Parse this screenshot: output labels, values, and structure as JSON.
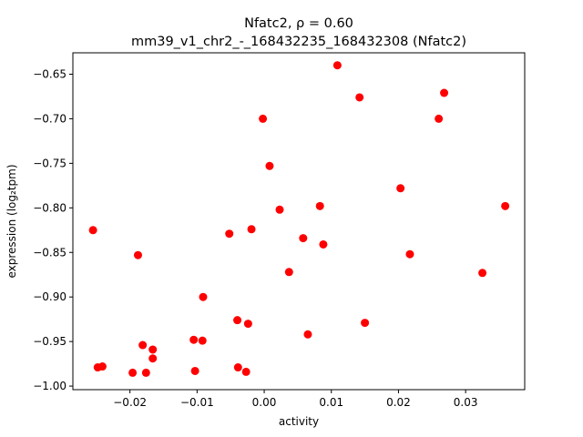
{
  "chart_data": {
    "type": "scatter",
    "title_line1": "Nfatc2, ρ = 0.60",
    "title_line2": "mm39_v1_chr2_-_168432235_168432308 (Nfatc2)",
    "xlabel": "activity",
    "ylabel": "expression (log₂tpm)",
    "xlim": [
      -0.0285,
      0.0388
    ],
    "ylim": [
      -1.004,
      -0.626
    ],
    "xticks": [
      {
        "value": -0.02,
        "label": "−0.02"
      },
      {
        "value": -0.01,
        "label": "−0.01"
      },
      {
        "value": 0.0,
        "label": "0.00"
      },
      {
        "value": 0.01,
        "label": "0.01"
      },
      {
        "value": 0.02,
        "label": "0.02"
      },
      {
        "value": 0.03,
        "label": "0.03"
      }
    ],
    "yticks": [
      {
        "value": -1.0,
        "label": "−1.00"
      },
      {
        "value": -0.95,
        "label": "−0.95"
      },
      {
        "value": -0.9,
        "label": "−0.90"
      },
      {
        "value": -0.85,
        "label": "−0.85"
      },
      {
        "value": -0.8,
        "label": "−0.80"
      },
      {
        "value": -0.75,
        "label": "−0.75"
      },
      {
        "value": -0.7,
        "label": "−0.70"
      },
      {
        "value": -0.65,
        "label": "−0.65"
      }
    ],
    "grid": false,
    "point_color": "#ff0000",
    "points": [
      [
        0.0109,
        -0.64
      ],
      [
        0.0268,
        -0.671
      ],
      [
        0.0142,
        -0.676
      ],
      [
        0.026,
        -0.7
      ],
      [
        -0.0002,
        -0.7
      ],
      [
        0.0008,
        -0.753
      ],
      [
        0.0203,
        -0.778
      ],
      [
        0.0023,
        -0.802
      ],
      [
        0.0083,
        -0.798
      ],
      [
        0.0359,
        -0.798
      ],
      [
        -0.0255,
        -0.825
      ],
      [
        -0.0019,
        -0.824
      ],
      [
        -0.0052,
        -0.829
      ],
      [
        0.0058,
        -0.834
      ],
      [
        0.0088,
        -0.841
      ],
      [
        -0.0188,
        -0.853
      ],
      [
        0.0217,
        -0.852
      ],
      [
        0.0037,
        -0.872
      ],
      [
        0.0325,
        -0.873
      ],
      [
        -0.0091,
        -0.9
      ],
      [
        -0.004,
        -0.926
      ],
      [
        -0.0024,
        -0.93
      ],
      [
        0.015,
        -0.929
      ],
      [
        0.0065,
        -0.942
      ],
      [
        -0.0105,
        -0.948
      ],
      [
        -0.0092,
        -0.949
      ],
      [
        -0.0181,
        -0.954
      ],
      [
        -0.0166,
        -0.959
      ],
      [
        -0.0166,
        -0.969
      ],
      [
        -0.0248,
        -0.979
      ],
      [
        -0.0241,
        -0.978
      ],
      [
        -0.0039,
        -0.979
      ],
      [
        -0.0196,
        -0.985
      ],
      [
        -0.0176,
        -0.985
      ],
      [
        -0.0103,
        -0.983
      ],
      [
        -0.0027,
        -0.984
      ]
    ]
  }
}
